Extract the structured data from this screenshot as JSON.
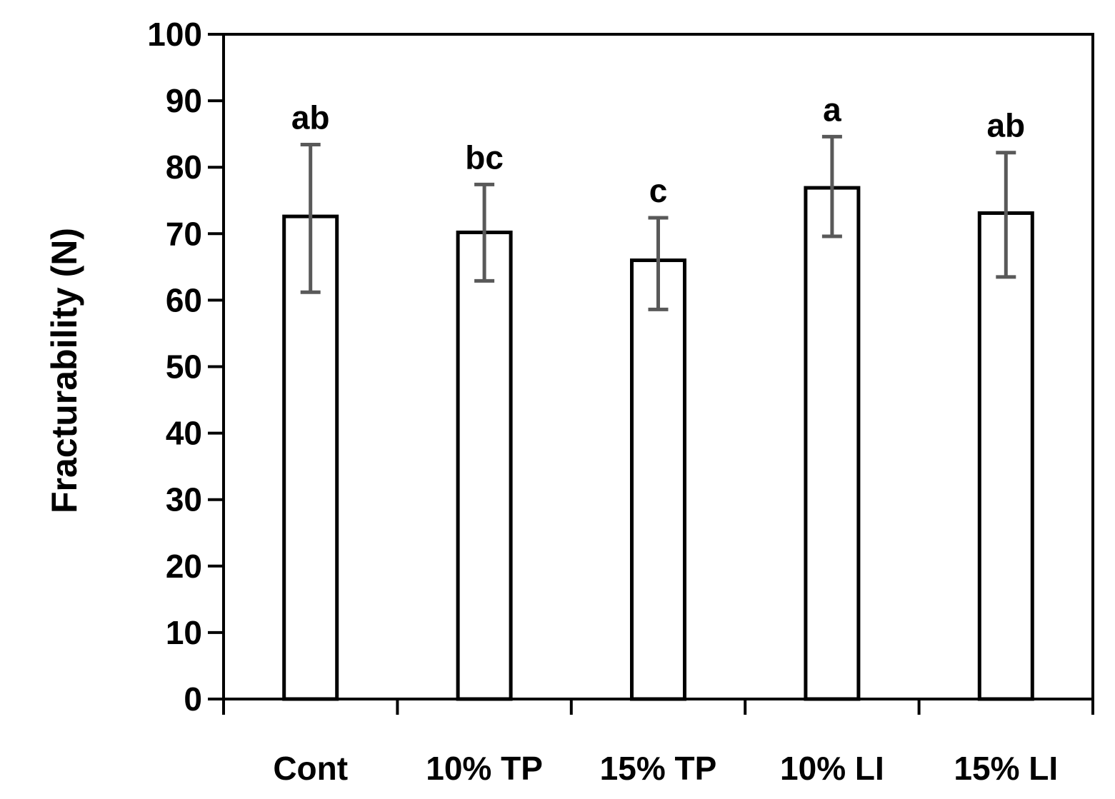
{
  "chart_data": {
    "type": "bar",
    "categories": [
      "Cont",
      "10% TP",
      "15% TP",
      "10% LI",
      "15% LI"
    ],
    "values": [
      72.6,
      70.2,
      66.0,
      76.9,
      73.1
    ],
    "error_high": [
      83.4,
      77.4,
      72.4,
      84.6,
      82.2
    ],
    "error_low": [
      61.2,
      62.9,
      58.6,
      69.6,
      63.5
    ],
    "significance_labels": [
      "ab",
      "bc",
      "c",
      "a",
      "ab"
    ],
    "ylabel": "Fracturability (N)",
    "xlabel": "",
    "ylim": [
      0,
      100
    ],
    "yticks": [
      "0",
      "10",
      "20",
      "30",
      "40",
      "50",
      "60",
      "70",
      "80",
      "90",
      "100"
    ],
    "grid": false,
    "legend": "none",
    "colors": {
      "bar_fill": "#ffffff",
      "bar_stroke": "#000000",
      "error_bar": "#595959",
      "axis": "#000000"
    }
  }
}
